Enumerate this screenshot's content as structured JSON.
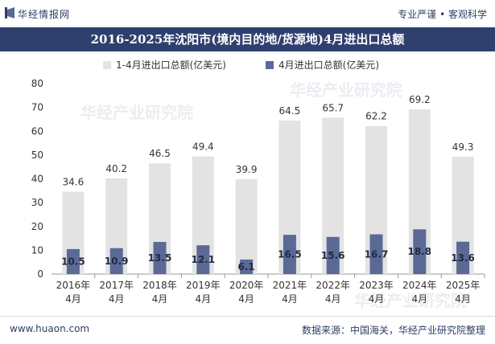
{
  "header": {
    "brand": "华经情报网",
    "slogan": "专业严谨 • 客观科学"
  },
  "watermarks": [
    "华经产业研究院",
    "华经产业研究院",
    "华经产业研究院"
  ],
  "chart_data": {
    "type": "bar",
    "title": "2016-2025年沈阳市(境内目的地/货源地)4月进出口总额",
    "categories": [
      [
        "2016年",
        "4月"
      ],
      [
        "2017年",
        "4月"
      ],
      [
        "2018年",
        "4月"
      ],
      [
        "2019年",
        "4月"
      ],
      [
        "2020年",
        "4月"
      ],
      [
        "2021年",
        "4月"
      ],
      [
        "2022年",
        "4月"
      ],
      [
        "2023年",
        "4月"
      ],
      [
        "2024年",
        "4月"
      ],
      [
        "2025年",
        "4月"
      ]
    ],
    "series": [
      {
        "name": "1-4月进出口总额(亿美元)",
        "values": [
          34.6,
          40.2,
          46.5,
          49.4,
          39.9,
          64.5,
          65.7,
          62.2,
          69.2,
          49.3
        ],
        "color": "#e3e3e3",
        "label_color": "#333333"
      },
      {
        "name": "4月进出口总额(亿美元)",
        "values": [
          10.5,
          10.9,
          13.5,
          12.1,
          6.1,
          16.5,
          15.6,
          16.7,
          18.8,
          13.6
        ],
        "color": "#5b6a95",
        "label_color": "#1f2a44"
      }
    ],
    "ylim": [
      0,
      80
    ],
    "yticks": [
      0,
      10,
      20,
      30,
      40,
      50,
      60,
      70,
      80
    ],
    "grid": false,
    "legend": "top"
  },
  "footer": {
    "website": "www.huaon.com",
    "source": "数据来源：中国海关，华经产业研究院整理"
  }
}
